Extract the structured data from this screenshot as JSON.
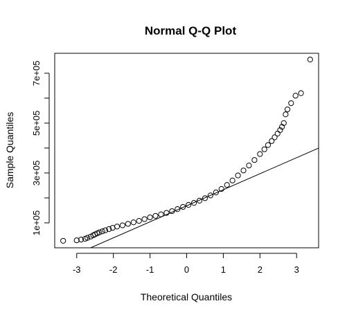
{
  "chart_data": {
    "type": "scatter",
    "title": "Normal Q-Q Plot",
    "xlabel": "Theoretical Quantiles",
    "ylabel": "Sample Quantiles",
    "xlim": [
      -3.6,
      3.6
    ],
    "ylim": [
      0,
      780000
    ],
    "x_ticks": [
      -3,
      -2,
      -1,
      0,
      1,
      2,
      3
    ],
    "x_tick_labels": [
      "-3",
      "-2",
      "-1",
      "0",
      "1",
      "2",
      "3"
    ],
    "y_ticks": [
      100000,
      200000,
      300000,
      400000,
      500000,
      600000,
      700000
    ],
    "y_tick_labels": [
      "1e+05",
      "",
      "3e+05",
      "",
      "5e+05",
      "",
      "7e+05"
    ],
    "grid": false,
    "legend": "none",
    "reference_line": {
      "x1": -2.62,
      "y1": 0,
      "x2": 3.6,
      "y2": 400000
    },
    "points": {
      "x": [
        -3.37,
        -3.0,
        -2.88,
        -2.77,
        -2.71,
        -2.62,
        -2.55,
        -2.5,
        -2.44,
        -2.38,
        -2.3,
        -2.22,
        -2.12,
        -2.02,
        -1.9,
        -1.75,
        -1.6,
        -1.45,
        -1.3,
        -1.15,
        -1.0,
        -0.85,
        -0.7,
        -0.55,
        -0.4,
        -0.25,
        -0.1,
        0.05,
        0.2,
        0.35,
        0.5,
        0.65,
        0.8,
        0.95,
        1.1,
        1.25,
        1.4,
        1.55,
        1.7,
        1.85,
        2.0,
        2.12,
        2.22,
        2.32,
        2.4,
        2.48,
        2.55,
        2.6,
        2.65,
        2.7,
        2.75,
        2.85,
        2.97,
        3.12,
        3.37
      ],
      "y": [
        28000,
        30000,
        33000,
        36000,
        40000,
        45000,
        50000,
        54000,
        58000,
        62000,
        66000,
        70000,
        75000,
        80000,
        85000,
        90000,
        96000,
        102000,
        108000,
        115000,
        122000,
        128000,
        134000,
        140000,
        147000,
        155000,
        164000,
        172000,
        180000,
        189000,
        199000,
        210000,
        222000,
        236000,
        252000,
        270000,
        290000,
        310000,
        330000,
        352000,
        376000,
        395000,
        412000,
        428000,
        443000,
        458000,
        472000,
        485000,
        500000,
        535000,
        555000,
        580000,
        610000,
        620000,
        755000
      ]
    }
  }
}
